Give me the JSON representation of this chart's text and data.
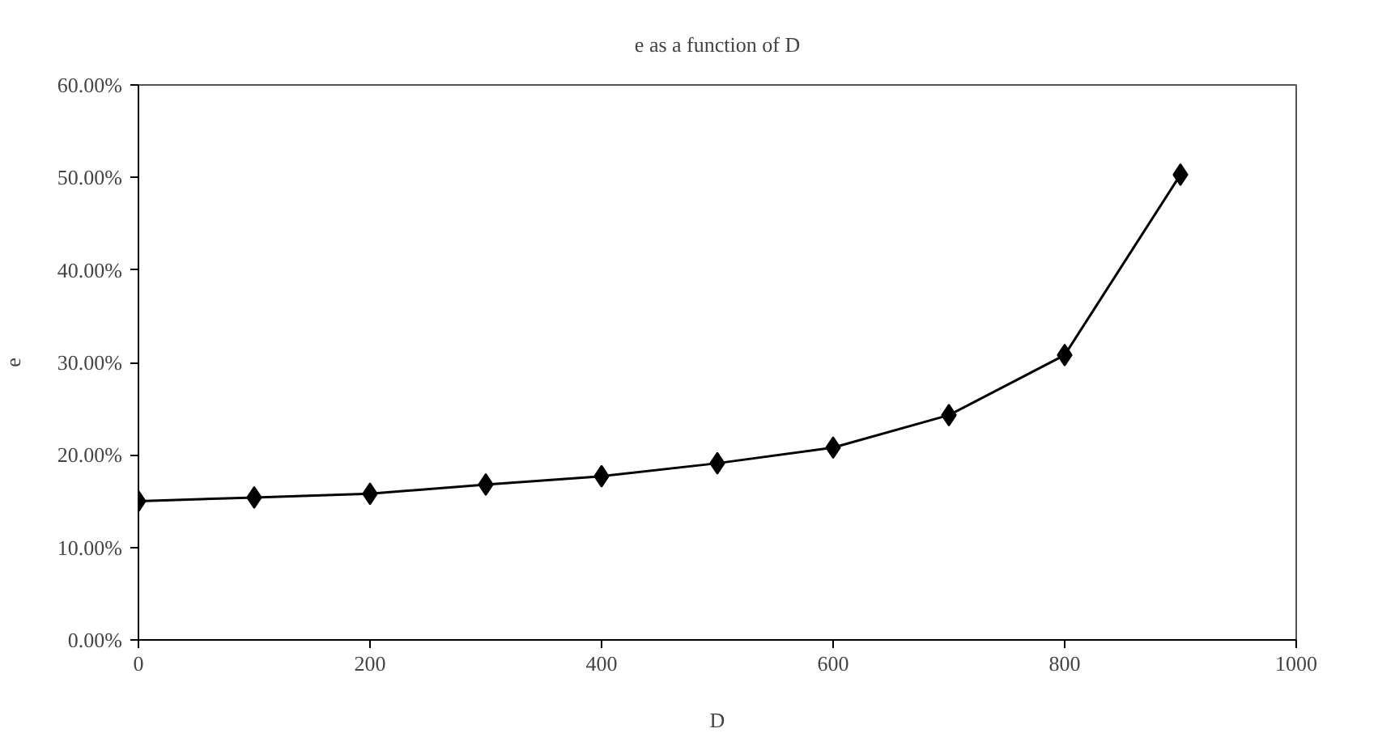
{
  "chart_data": {
    "type": "line",
    "title": "e as a function of D",
    "xlabel": "D",
    "ylabel": "e",
    "x": [
      0,
      100,
      200,
      300,
      400,
      500,
      600,
      700,
      800,
      900
    ],
    "series": [
      {
        "color": "#000000",
        "values": [
          15.0,
          15.4,
          15.8,
          16.8,
          17.7,
          19.1,
          20.8,
          24.3,
          30.8,
          50.3
        ]
      }
    ],
    "marker": "diamond",
    "line_style": "solid",
    "grid": false,
    "xlim": [
      0,
      1000
    ],
    "xticks": [
      0,
      200,
      400,
      600,
      800,
      1000
    ],
    "ylim": [
      0,
      60
    ],
    "yticks": [
      {
        "value": 0,
        "label": "0.00%"
      },
      {
        "value": 10,
        "label": "10.00%"
      },
      {
        "value": 20,
        "label": "20.00%"
      },
      {
        "value": 30,
        "label": "30.00%"
      },
      {
        "value": 40,
        "label": "40.00%"
      },
      {
        "value": 50,
        "label": "50.00%"
      },
      {
        "value": 60,
        "label": "60.00%"
      }
    ]
  }
}
